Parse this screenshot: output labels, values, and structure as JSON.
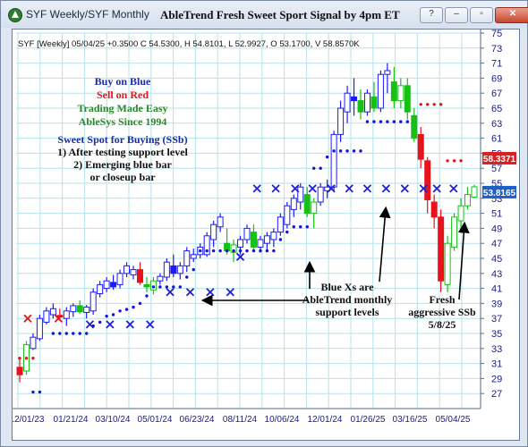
{
  "window": {
    "title": "SYF Weekly/SYF Monthly",
    "chart_title": "AbleTrend Fresh Sweet Sport Signal by 4pm ET",
    "buttons": [
      "?",
      "–",
      "▫",
      "✕"
    ]
  },
  "colors": {
    "grid": "#b6e3ea",
    "blue_bar": "#1a1aff",
    "red_bar": "#e8121a",
    "green_bar": "#17c017",
    "blue_dot": "#1212e0",
    "red_dot": "#e8121a",
    "support_x": "#1f1fd8",
    "buy_text": "#1a2aa8",
    "sell_text": "#e8121a",
    "green_text": "#2a8a2a",
    "price_tag_red": "#d62222",
    "price_tag_blue": "#1f5fc8"
  },
  "chart_data": {
    "type": "candlestick",
    "symbol": "SYF",
    "header_text": "SYF [Weekly] 05/04/25 +0.3500 C 54.5300, H 54.8101, L 52.9927, O 53.1700, V 58.8570K",
    "ylim": [
      25,
      75
    ],
    "y_ticks": [
      27,
      29,
      31,
      33,
      35,
      37,
      39,
      41,
      43,
      45,
      47,
      49,
      51,
      53,
      55,
      57,
      59,
      61,
      63,
      65,
      67,
      69,
      71,
      73,
      75
    ],
    "x_labels": [
      "12/01/23",
      "01/21/24",
      "03/10/24",
      "05/01/24",
      "06/23/24",
      "08/11/24",
      "10/06/24",
      "12/01/24",
      "01/26/25",
      "03/16/25",
      "05/04/25"
    ],
    "price_tags": [
      {
        "value": 58.3371,
        "label": "58.3371",
        "color": "red"
      },
      {
        "value": 53.8165,
        "label": "53.8165",
        "color": "blue"
      }
    ],
    "bars": [
      {
        "o": 29.5,
        "h": 31.5,
        "l": 28.5,
        "c": 30.5,
        "color": "red"
      },
      {
        "o": 30,
        "h": 34,
        "l": 29.5,
        "c": 33.5,
        "color": "green"
      },
      {
        "o": 33,
        "h": 35,
        "l": 32.8,
        "c": 34.5,
        "color": "blue"
      },
      {
        "o": 34.3,
        "h": 37.5,
        "l": 34,
        "c": 37,
        "color": "blue"
      },
      {
        "o": 36.5,
        "h": 38.5,
        "l": 36.2,
        "c": 38,
        "color": "blue"
      },
      {
        "o": 37.5,
        "h": 39,
        "l": 37,
        "c": 38.3,
        "color": "blue"
      },
      {
        "o": 37.4,
        "h": 38.3,
        "l": 36.8,
        "c": 37.2,
        "color": "red"
      },
      {
        "o": 37,
        "h": 38.5,
        "l": 36,
        "c": 38,
        "color": "blue"
      },
      {
        "o": 37.9,
        "h": 39,
        "l": 37.2,
        "c": 38.7,
        "color": "blue"
      },
      {
        "o": 38.7,
        "h": 39.4,
        "l": 37.6,
        "c": 37.9,
        "color": "green"
      },
      {
        "o": 37.8,
        "h": 38.8,
        "l": 37,
        "c": 38.5,
        "color": "blue"
      },
      {
        "o": 38,
        "h": 41,
        "l": 37.5,
        "c": 40.5,
        "color": "blue"
      },
      {
        "o": 40.3,
        "h": 42,
        "l": 39.8,
        "c": 41.5,
        "color": "blue"
      },
      {
        "o": 41,
        "h": 42.5,
        "l": 40.5,
        "c": 42,
        "color": "blue"
      },
      {
        "o": 41.8,
        "h": 42.8,
        "l": 40.8,
        "c": 41.2,
        "color": "blue"
      },
      {
        "o": 41.5,
        "h": 43.5,
        "l": 41,
        "c": 43,
        "color": "blue"
      },
      {
        "o": 43,
        "h": 44.5,
        "l": 42.5,
        "c": 44,
        "color": "blue"
      },
      {
        "o": 42.8,
        "h": 44,
        "l": 42.2,
        "c": 43.5,
        "color": "blue"
      },
      {
        "o": 43.5,
        "h": 44.5,
        "l": 41.5,
        "c": 41.8,
        "color": "red"
      },
      {
        "o": 41.5,
        "h": 42.5,
        "l": 40.5,
        "c": 41.2,
        "color": "green"
      },
      {
        "o": 40.8,
        "h": 42.5,
        "l": 40.2,
        "c": 42,
        "color": "green"
      },
      {
        "o": 42,
        "h": 43,
        "l": 41.5,
        "c": 42.6,
        "color": "blue"
      },
      {
        "o": 42.5,
        "h": 45,
        "l": 42,
        "c": 44.5,
        "color": "blue"
      },
      {
        "o": 44,
        "h": 45.5,
        "l": 42.5,
        "c": 43,
        "color": "blue"
      },
      {
        "o": 43,
        "h": 44.5,
        "l": 42.2,
        "c": 44,
        "color": "blue"
      },
      {
        "o": 44,
        "h": 46.5,
        "l": 43.2,
        "c": 46,
        "color": "blue"
      },
      {
        "o": 45,
        "h": 46.3,
        "l": 44.5,
        "c": 45.5,
        "color": "blue"
      },
      {
        "o": 45.5,
        "h": 47,
        "l": 45,
        "c": 46.5,
        "color": "blue"
      },
      {
        "o": 45.5,
        "h": 48.5,
        "l": 45.2,
        "c": 48,
        "color": "blue"
      },
      {
        "o": 47.5,
        "h": 50,
        "l": 46.5,
        "c": 49.5,
        "color": "blue"
      },
      {
        "o": 49.2,
        "h": 51,
        "l": 48.5,
        "c": 50.5,
        "color": "blue"
      },
      {
        "o": 47,
        "h": 49,
        "l": 45.5,
        "c": 46,
        "color": "green"
      },
      {
        "o": 45.8,
        "h": 47.5,
        "l": 44.5,
        "c": 46.8,
        "color": "green"
      },
      {
        "o": 46.5,
        "h": 48,
        "l": 45.5,
        "c": 47.5,
        "color": "blue"
      },
      {
        "o": 47.5,
        "h": 49.5,
        "l": 47,
        "c": 49,
        "color": "blue"
      },
      {
        "o": 48.5,
        "h": 49.5,
        "l": 46,
        "c": 46.5,
        "color": "green"
      },
      {
        "o": 46.5,
        "h": 48,
        "l": 45.8,
        "c": 47.5,
        "color": "blue"
      },
      {
        "o": 47,
        "h": 48.5,
        "l": 46.2,
        "c": 48,
        "color": "blue"
      },
      {
        "o": 47.5,
        "h": 49,
        "l": 46.5,
        "c": 48.5,
        "color": "blue"
      },
      {
        "o": 48.5,
        "h": 51,
        "l": 48,
        "c": 50.5,
        "color": "blue"
      },
      {
        "o": 49.5,
        "h": 52.5,
        "l": 49,
        "c": 52,
        "color": "blue"
      },
      {
        "o": 51.5,
        "h": 53.5,
        "l": 50.5,
        "c": 53,
        "color": "blue"
      },
      {
        "o": 52.5,
        "h": 55,
        "l": 51.5,
        "c": 54.5,
        "color": "blue"
      },
      {
        "o": 53.5,
        "h": 54.5,
        "l": 50.5,
        "c": 51,
        "color": "green"
      },
      {
        "o": 51,
        "h": 53,
        "l": 49,
        "c": 52.5,
        "color": "green"
      },
      {
        "o": 52.5,
        "h": 55,
        "l": 52,
        "c": 54.5,
        "color": "blue"
      },
      {
        "o": 54,
        "h": 55.5,
        "l": 53,
        "c": 54.5,
        "color": "blue"
      },
      {
        "o": 54.5,
        "h": 62,
        "l": 54,
        "c": 61.5,
        "color": "blue"
      },
      {
        "o": 61.5,
        "h": 66,
        "l": 60.5,
        "c": 65,
        "color": "blue"
      },
      {
        "o": 64.5,
        "h": 68,
        "l": 63,
        "c": 67,
        "color": "blue"
      },
      {
        "o": 66.5,
        "h": 69,
        "l": 64,
        "c": 66,
        "color": "blue"
      },
      {
        "o": 66,
        "h": 67.5,
        "l": 63.5,
        "c": 64.5,
        "color": "green"
      },
      {
        "o": 64.5,
        "h": 67.5,
        "l": 64,
        "c": 67,
        "color": "blue"
      },
      {
        "o": 66.5,
        "h": 68.5,
        "l": 64.5,
        "c": 65,
        "color": "green"
      },
      {
        "o": 65,
        "h": 70,
        "l": 64.5,
        "c": 69.5,
        "color": "blue"
      },
      {
        "o": 69.5,
        "h": 71,
        "l": 67,
        "c": 70,
        "color": "blue"
      },
      {
        "o": 68.5,
        "h": 70.5,
        "l": 65,
        "c": 66,
        "color": "green"
      },
      {
        "o": 66,
        "h": 69,
        "l": 65,
        "c": 68,
        "color": "green"
      },
      {
        "o": 68,
        "h": 69,
        "l": 63.5,
        "c": 64.5,
        "color": "green"
      },
      {
        "o": 64,
        "h": 65,
        "l": 60.5,
        "c": 61,
        "color": "green"
      },
      {
        "o": 61.5,
        "h": 62.5,
        "l": 57,
        "c": 58.2,
        "color": "red"
      },
      {
        "o": 58,
        "h": 58.5,
        "l": 51,
        "c": 52.8,
        "color": "red"
      },
      {
        "o": 52.5,
        "h": 53.5,
        "l": 49,
        "c": 50.5,
        "color": "red"
      },
      {
        "o": 50.5,
        "h": 51.5,
        "l": 40.5,
        "c": 42,
        "color": "red"
      },
      {
        "o": 41.5,
        "h": 48,
        "l": 40.5,
        "c": 47,
        "color": "green"
      },
      {
        "o": 46.5,
        "h": 51,
        "l": 46,
        "c": 50.5,
        "color": "green"
      },
      {
        "o": 50,
        "h": 53,
        "l": 49,
        "c": 52,
        "color": "green"
      },
      {
        "o": 52,
        "h": 54.5,
        "l": 51.5,
        "c": 53.5,
        "color": "green"
      },
      {
        "o": 53.17,
        "h": 54.81,
        "l": 52.99,
        "c": 54.53,
        "color": "green"
      }
    ],
    "blue_dots": [
      {
        "bar": 2,
        "y": 27.2
      },
      {
        "bar": 3,
        "y": 27.2
      },
      {
        "bar": 5,
        "y": 35
      },
      {
        "bar": 6,
        "y": 35
      },
      {
        "bar": 7,
        "y": 35
      },
      {
        "bar": 8,
        "y": 35
      },
      {
        "bar": 9,
        "y": 35
      },
      {
        "bar": 10,
        "y": 35
      },
      {
        "bar": 11,
        "y": 36
      },
      {
        "bar": 12,
        "y": 36.5
      },
      {
        "bar": 13,
        "y": 37.3
      },
      {
        "bar": 14,
        "y": 37.5
      },
      {
        "bar": 15,
        "y": 38
      },
      {
        "bar": 16,
        "y": 38.2
      },
      {
        "bar": 17,
        "y": 38.5
      },
      {
        "bar": 18,
        "y": 39
      },
      {
        "bar": 19,
        "y": 40
      },
      {
        "bar": 20,
        "y": 41.2
      },
      {
        "bar": 21,
        "y": 41.2
      },
      {
        "bar": 22,
        "y": 41.2
      },
      {
        "bar": 23,
        "y": 41.2
      },
      {
        "bar": 24,
        "y": 41.2
      },
      {
        "bar": 25,
        "y": 42.5
      },
      {
        "bar": 26,
        "y": 43.5
      },
      {
        "bar": 27,
        "y": 46
      },
      {
        "bar": 28,
        "y": 46
      },
      {
        "bar": 29,
        "y": 46
      },
      {
        "bar": 30,
        "y": 46
      },
      {
        "bar": 31,
        "y": 46
      },
      {
        "bar": 32,
        "y": 46
      },
      {
        "bar": 33,
        "y": 46
      },
      {
        "bar": 34,
        "y": 46
      },
      {
        "bar": 35,
        "y": 46
      },
      {
        "bar": 36,
        "y": 46
      },
      {
        "bar": 37,
        "y": 46
      },
      {
        "bar": 38,
        "y": 46
      },
      {
        "bar": 39,
        "y": 47.5
      },
      {
        "bar": 40,
        "y": 48.5
      },
      {
        "bar": 41,
        "y": 49.2
      },
      {
        "bar": 42,
        "y": 49.2
      },
      {
        "bar": 43,
        "y": 49.2
      },
      {
        "bar": 44,
        "y": 57
      },
      {
        "bar": 45,
        "y": 57
      },
      {
        "bar": 46,
        "y": 58.5
      },
      {
        "bar": 47,
        "y": 59.3
      },
      {
        "bar": 48,
        "y": 59.3
      },
      {
        "bar": 49,
        "y": 59.3
      },
      {
        "bar": 50,
        "y": 59.3
      },
      {
        "bar": 51,
        "y": 59.3
      },
      {
        "bar": 52,
        "y": 63.2
      },
      {
        "bar": 53,
        "y": 63.2
      },
      {
        "bar": 54,
        "y": 63.2
      },
      {
        "bar": 55,
        "y": 63.2
      },
      {
        "bar": 56,
        "y": 63.2
      },
      {
        "bar": 57,
        "y": 63.2
      },
      {
        "bar": 58,
        "y": 63.2
      }
    ],
    "red_dots": [
      {
        "bar": 0,
        "y": 31.7
      },
      {
        "bar": 1,
        "y": 31.7
      },
      {
        "bar": 2,
        "y": 31.7
      },
      {
        "bar": 60,
        "y": 65.5
      },
      {
        "bar": 61,
        "y": 65.5
      },
      {
        "bar": 62,
        "y": 65.5
      },
      {
        "bar": 63,
        "y": 65.5
      },
      {
        "bar": 64,
        "y": 58
      },
      {
        "bar": 65,
        "y": 58
      },
      {
        "bar": 66,
        "y": 58
      }
    ],
    "support_x": [
      {
        "bar": 1.2,
        "y": 37,
        "color": "red"
      },
      {
        "bar": 5.8,
        "y": 37,
        "color": "red"
      },
      {
        "bar": 10.5,
        "y": 36.2,
        "color": "blue"
      },
      {
        "bar": 13.5,
        "y": 36.2,
        "color": "blue"
      },
      {
        "bar": 16.5,
        "y": 36.2,
        "color": "blue"
      },
      {
        "bar": 19.5,
        "y": 36.2,
        "color": "blue"
      },
      {
        "bar": 22.5,
        "y": 40.5,
        "color": "blue"
      },
      {
        "bar": 25.5,
        "y": 40.5,
        "color": "blue"
      },
      {
        "bar": 28.5,
        "y": 40.5,
        "color": "blue"
      },
      {
        "bar": 31.5,
        "y": 40.5,
        "color": "blue"
      },
      {
        "bar": 33,
        "y": 45.2,
        "color": "blue"
      },
      {
        "bar": 35.5,
        "y": 54.3,
        "color": "blue"
      },
      {
        "bar": 38.3,
        "y": 54.3,
        "color": "blue"
      },
      {
        "bar": 41.2,
        "y": 54.3,
        "color": "blue"
      },
      {
        "bar": 43.8,
        "y": 54.3,
        "color": "blue"
      },
      {
        "bar": 46.6,
        "y": 54.3,
        "color": "blue"
      },
      {
        "bar": 49.3,
        "y": 54.3,
        "color": "blue"
      },
      {
        "bar": 52,
        "y": 54.3,
        "color": "blue"
      },
      {
        "bar": 54.8,
        "y": 54.3,
        "color": "blue"
      },
      {
        "bar": 57.6,
        "y": 54.3,
        "color": "blue"
      },
      {
        "bar": 60.4,
        "y": 54.3,
        "color": "blue"
      },
      {
        "bar": 62.4,
        "y": 54.3,
        "color": "blue"
      },
      {
        "bar": 64.9,
        "y": 54.3,
        "color": "blue"
      }
    ],
    "annotations": {
      "legend_lines": [
        {
          "text": "Buy on Blue",
          "color": "blue"
        },
        {
          "text": "Sell on Red",
          "color": "red"
        },
        {
          "text": "Trading Made Easy",
          "color": "green"
        },
        {
          "text": "AbleSys Since 1994",
          "color": "green"
        }
      ],
      "sweet_spot": [
        "Sweet Spot for Buying (SSb)",
        "1) After testing support level",
        "2) Emerging blue bar",
        "or closeup bar"
      ],
      "blue_xs_note": [
        "Blue Xs are",
        "AbleTrend monthly",
        "support levels"
      ],
      "fresh_note": [
        "Fresh",
        "aggressive SSb",
        "5/8/25"
      ]
    }
  }
}
